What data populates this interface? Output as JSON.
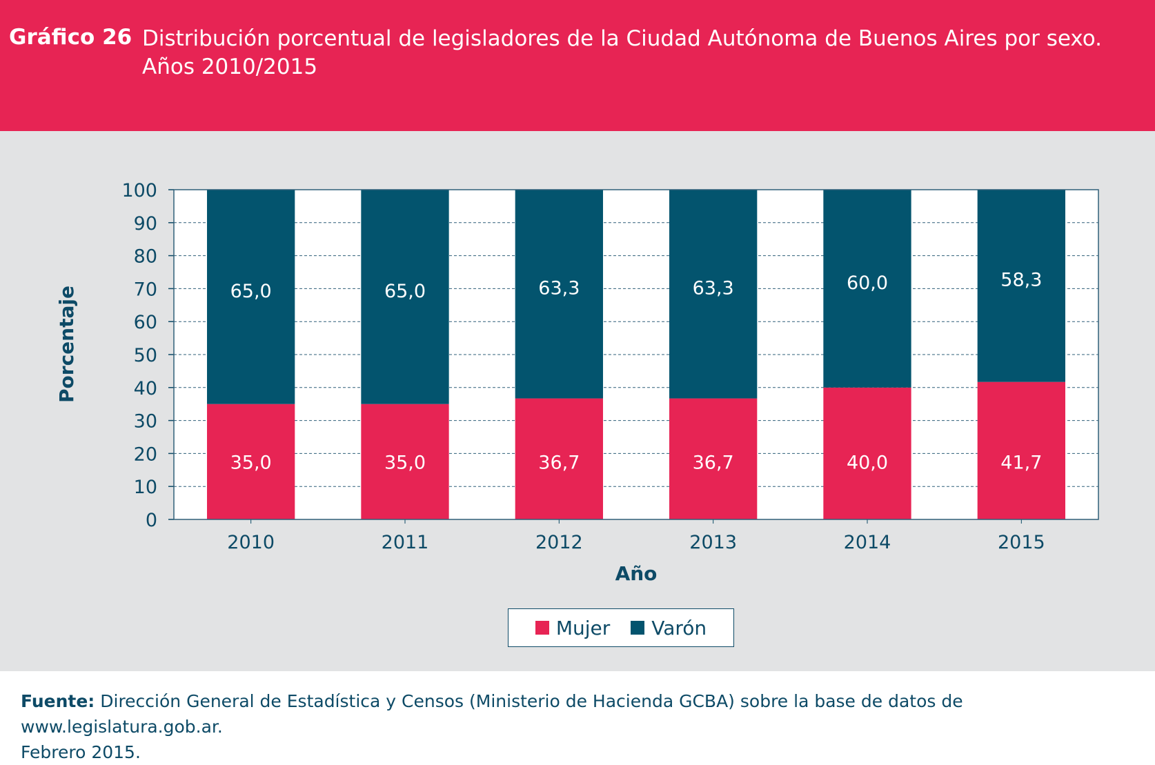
{
  "header": {
    "label": "Gráfico 26",
    "title_line1": "Distribución porcentual de legisladores de la Ciudad Autónoma de Buenos Aires por sexo.",
    "title_line2": "Años 2010/2015"
  },
  "chart_data": {
    "type": "bar",
    "stacked": true,
    "categories": [
      "2010",
      "2011",
      "2012",
      "2013",
      "2014",
      "2015"
    ],
    "series": [
      {
        "name": "Mujer",
        "values": [
          35.0,
          35.0,
          36.7,
          36.7,
          40.0,
          41.7
        ],
        "labels": [
          "35,0",
          "35,0",
          "36,7",
          "36,7",
          "40,0",
          "41,7"
        ],
        "color": "#e72454"
      },
      {
        "name": "Varón",
        "values": [
          65.0,
          65.0,
          63.3,
          63.3,
          60.0,
          58.3
        ],
        "labels": [
          "65,0",
          "65,0",
          "63,3",
          "63,3",
          "60,0",
          "58,3"
        ],
        "color": "#03546e"
      }
    ],
    "xlabel": "Año",
    "ylabel": "Porcentaje",
    "ylim": [
      0,
      100
    ],
    "yticks": [
      "0",
      "10",
      "20",
      "30",
      "40",
      "50",
      "60",
      "70",
      "80",
      "90",
      "100"
    ],
    "grid": "dashed horizontal",
    "legend_position": "bottom-center"
  },
  "footer": {
    "source_label": "Fuente:",
    "source_text": "Dirección General de Estadística y Censos (Ministerio de Hacienda GCBA) sobre la base de datos de www.legislatura.gob.ar.",
    "date_text": "Febrero 2015."
  },
  "colors": {
    "header_bg": "#e72454",
    "chart_bg": "#e2e3e4",
    "text": "#0d4a66",
    "mujer": "#e72454",
    "varon": "#03546e"
  }
}
